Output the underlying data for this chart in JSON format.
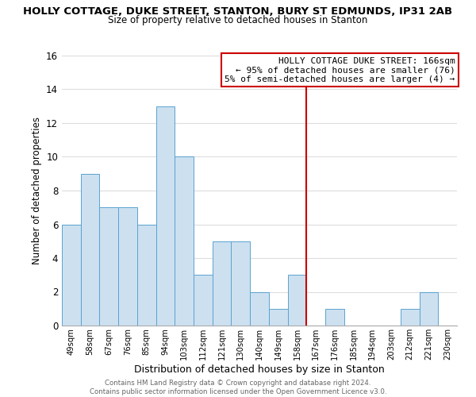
{
  "title": "HOLLY COTTAGE, DUKE STREET, STANTON, BURY ST EDMUNDS, IP31 2AB",
  "subtitle": "Size of property relative to detached houses in Stanton",
  "xlabel": "Distribution of detached houses by size in Stanton",
  "ylabel": "Number of detached properties",
  "bar_labels": [
    "49sqm",
    "58sqm",
    "67sqm",
    "76sqm",
    "85sqm",
    "94sqm",
    "103sqm",
    "112sqm",
    "121sqm",
    "130sqm",
    "140sqm",
    "149sqm",
    "158sqm",
    "167sqm",
    "176sqm",
    "185sqm",
    "194sqm",
    "203sqm",
    "212sqm",
    "221sqm",
    "230sqm"
  ],
  "bar_values": [
    6,
    9,
    7,
    7,
    6,
    13,
    10,
    3,
    5,
    5,
    2,
    1,
    3,
    0,
    1,
    0,
    0,
    0,
    1,
    2,
    0
  ],
  "bar_color": "#cce0f0",
  "bar_edge_color": "#5ba3d0",
  "vline_index": 12.5,
  "vline_color": "#cc0000",
  "ylim": [
    0,
    16
  ],
  "yticks": [
    0,
    2,
    4,
    6,
    8,
    10,
    12,
    14,
    16
  ],
  "annotation_title": "HOLLY COTTAGE DUKE STREET: 166sqm",
  "annotation_line1": "← 95% of detached houses are smaller (76)",
  "annotation_line2": "5% of semi-detached houses are larger (4) →",
  "annotation_box_color": "#ffffff",
  "annotation_box_edge": "#cc0000",
  "footer1": "Contains HM Land Registry data © Crown copyright and database right 2024.",
  "footer2": "Contains public sector information licensed under the Open Government Licence v3.0.",
  "background_color": "#ffffff",
  "grid_color": "#dddddd"
}
